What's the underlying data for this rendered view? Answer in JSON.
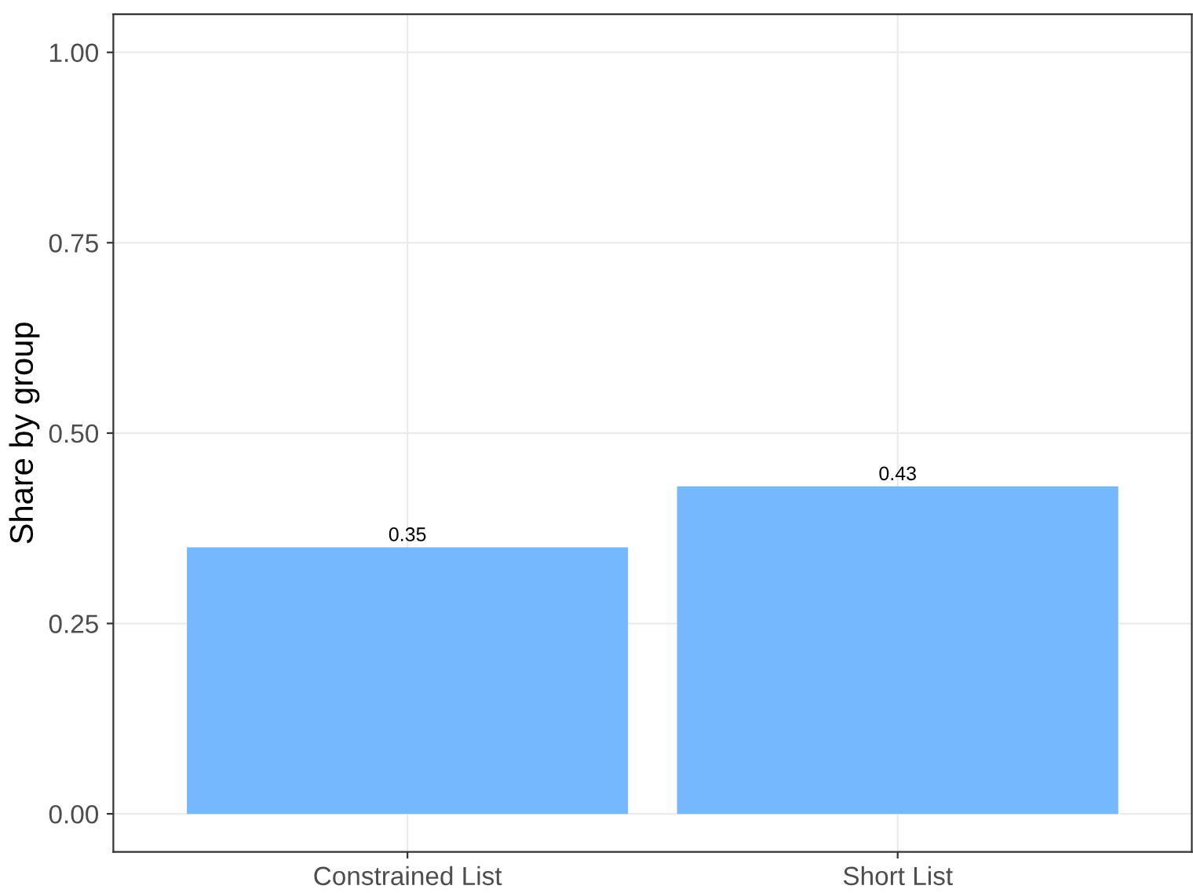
{
  "chart_data": {
    "type": "bar",
    "ylabel": "Share by group",
    "categories": [
      "Constrained List",
      "Short List"
    ],
    "values": [
      0.35,
      0.43
    ],
    "color": "#75b8fd",
    "ylim": [
      -0.05,
      1.05
    ],
    "yticks": [
      {
        "value": 0,
        "label": "0.00"
      },
      {
        "value": 0.25,
        "label": "0.25"
      },
      {
        "value": 0.5,
        "label": "0.50"
      },
      {
        "value": 0.75,
        "label": "0.75"
      },
      {
        "value": 1,
        "label": "1.00"
      }
    ],
    "grid": true,
    "data_labels": true
  }
}
